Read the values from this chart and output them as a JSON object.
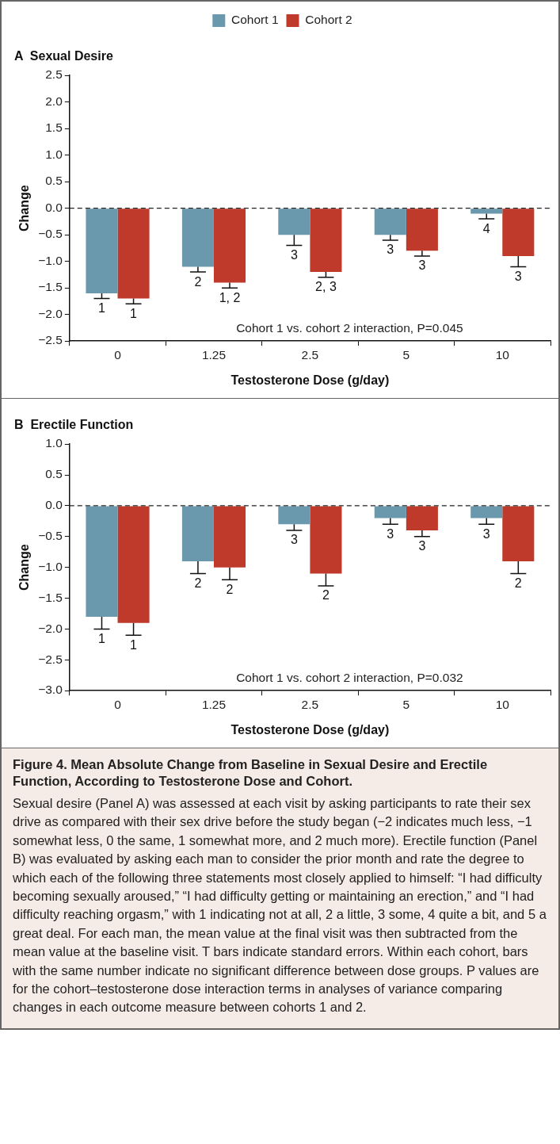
{
  "chart_data": [
    {
      "type": "bar",
      "title": "A  Sexual Desire",
      "xlabel": "Testosterone Dose (g/day)",
      "ylabel": "Change",
      "categories": [
        "0",
        "1.25",
        "2.5",
        "5",
        "10"
      ],
      "series": [
        {
          "name": "Cohort 1",
          "color": "#6a98ad",
          "values": [
            -1.6,
            -1.1,
            -0.5,
            -0.5,
            -0.1
          ],
          "errors": [
            [
              -1.7,
              -1.6
            ],
            [
              -1.2,
              -1.1
            ],
            [
              -0.7,
              -0.5
            ],
            [
              -0.6,
              -0.5
            ],
            [
              -0.2,
              -0.1
            ]
          ]
        },
        {
          "name": "Cohort 2",
          "color": "#bf3a2b",
          "values": [
            -1.7,
            -1.4,
            -1.2,
            -0.8,
            -0.9
          ],
          "errors": [
            [
              -1.8,
              -1.7
            ],
            [
              -1.5,
              -1.4
            ],
            [
              -1.3,
              -1.2
            ],
            [
              -0.9,
              -0.8
            ],
            [
              -1.1,
              -0.9
            ]
          ]
        }
      ],
      "ylim": [
        -2.5,
        2.5
      ],
      "yticks": [
        {
          "value": -2.5,
          "label": "−2.5"
        },
        {
          "value": -2,
          "label": "−2.0"
        },
        {
          "value": -1.5,
          "label": "−1.5"
        },
        {
          "value": -1,
          "label": "−1.0"
        },
        {
          "value": -0.5,
          "label": "−0.5"
        },
        {
          "value": 0,
          "label": "0.0"
        },
        {
          "value": 0.5,
          "label": "0.5"
        },
        {
          "value": 1,
          "label": "1.0"
        },
        {
          "value": 1.5,
          "label": "1.5"
        },
        {
          "value": 2,
          "label": "2.0"
        },
        {
          "value": 2.5,
          "label": "2.5"
        }
      ],
      "ref_lines": [
        {
          "axis": "y",
          "value": 0,
          "color": "#222222",
          "line_style": "dashed"
        }
      ],
      "annotations": [
        "Cohort 1 vs. cohort 2 interaction, P=0.045",
        {
          "text": "1",
          "x": "0",
          "y": -1.6
        },
        {
          "text": "2",
          "x": "1.25",
          "y": -1.1
        },
        {
          "text": "3",
          "x": "2.5",
          "y": -0.5
        },
        {
          "text": "3",
          "x": "5",
          "y": -0.5
        },
        {
          "text": "4",
          "x": "10",
          "y": -0.1
        },
        {
          "text": "1",
          "x": "0",
          "y": -1.7
        },
        {
          "text": "1, 2",
          "x": "1.25",
          "y": -1.4
        },
        {
          "text": "2, 3",
          "x": "2.5",
          "y": -1.2
        },
        {
          "text": "3",
          "x": "5",
          "y": -0.8
        },
        {
          "text": "3",
          "x": "10",
          "y": -0.9
        }
      ],
      "grid": false,
      "legend": "top"
    },
    {
      "type": "bar",
      "title": "B  Erectile Function",
      "xlabel": "Testosterone Dose (g/day)",
      "ylabel": "Change",
      "categories": [
        "0",
        "1.25",
        "2.5",
        "5",
        "10"
      ],
      "series": [
        {
          "color": "#6a98ad",
          "values": [
            -1.8,
            -0.9,
            -0.3,
            -0.2,
            -0.2
          ],
          "errors": [
            [
              -2.0,
              -1.8
            ],
            [
              -1.1,
              -0.9
            ],
            [
              -0.4,
              -0.3
            ],
            [
              -0.3,
              -0.2
            ],
            [
              -0.3,
              -0.2
            ]
          ]
        },
        {
          "color": "#bf3a2b",
          "values": [
            -1.9,
            -1.0,
            -1.1,
            -0.4,
            -0.9
          ],
          "errors": [
            [
              -2.1,
              -1.9
            ],
            [
              -1.2,
              -1.0
            ],
            [
              -1.3,
              -1.1
            ],
            [
              -0.5,
              -0.4
            ],
            [
              -1.1,
              -0.9
            ]
          ]
        }
      ],
      "ylim": [
        -3,
        1
      ],
      "yticks": [
        {
          "value": -3,
          "label": "−3.0"
        },
        {
          "value": -2.5,
          "label": "−2.5"
        },
        {
          "value": -2,
          "label": "−2.0"
        },
        {
          "value": -1.5,
          "label": "−1.5"
        },
        {
          "value": -1,
          "label": "−1.0"
        },
        {
          "value": -0.5,
          "label": "−0.5"
        },
        {
          "value": 0,
          "label": "0.0"
        },
        {
          "value": 0.5,
          "label": "0.5"
        },
        {
          "value": 1,
          "label": "1.0"
        }
      ],
      "ref_lines": [
        {
          "axis": "y",
          "value": 0,
          "color": "#222222",
          "line_style": "dashed"
        }
      ],
      "annotations": [
        "Cohort 1 vs. cohort 2 interaction, P=0.032",
        {
          "text": "1",
          "x": "0",
          "y": -1.8
        },
        {
          "text": "2",
          "x": "1.25",
          "y": -0.9
        },
        {
          "text": "3",
          "x": "2.5",
          "y": -0.3
        },
        {
          "text": "3",
          "x": "5",
          "y": -0.2
        },
        {
          "text": "3",
          "x": "10",
          "y": -0.2
        },
        {
          "text": "1",
          "x": "0",
          "y": -1.9
        },
        {
          "text": "2",
          "x": "1.25",
          "y": -1.0
        },
        {
          "text": "2",
          "x": "2.5",
          "y": -1.1
        },
        {
          "text": "3",
          "x": "5",
          "y": -0.4
        },
        {
          "text": "2",
          "x": "10",
          "y": -0.9
        },
        "Figure 4. Mean Absolute Change from Baseline in Sexual Desire and Erectile Function, According to Testosterone Dose and Cohort.",
        "Sexual desire (Panel A) was assessed at each visit by asking participants to rate their sex drive as compared with their sex drive before the study began (−2 indicates much less, −1 somewhat less, 0 the same, 1 somewhat more, and 2 much more). Erectile function (Panel B) was evaluated by asking each man to consider the prior month and rate the degree to which each of the following three statements most closely applied to himself: “I had difficulty becoming sexually aroused,” “I had difficulty getting or maintaining an erection,” and “I had difficulty reaching orgasm,” with 1 indicating not at all, 2 a little, 3 some, 4 quite a bit, and 5 a great deal. For each man, the mean value at the final visit was then subtracted from the mean value at the baseline visit. T bars indicate standard errors. Within each cohort, bars with the same number indicate no significant difference between dose groups. P values are for the cohort–testosterone dose interaction terms in analyses of variance comparing changes in each outcome measure between cohorts 1 and 2."
      ],
      "grid": false,
      "legend": false
    }
  ]
}
